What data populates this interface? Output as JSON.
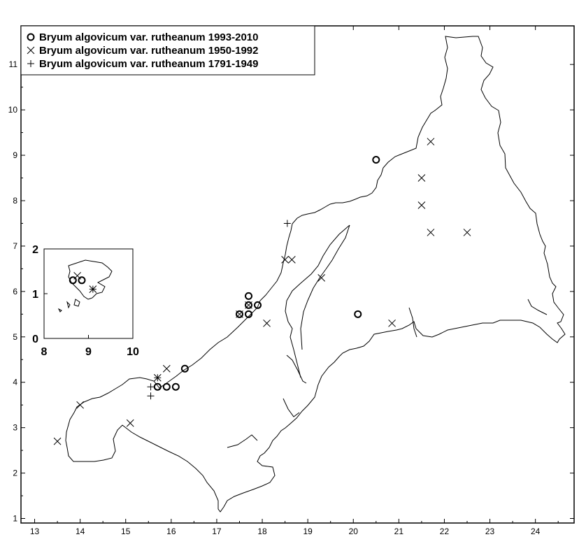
{
  "chart_data": {
    "type": "scatter",
    "title": "",
    "xlabel": "",
    "ylabel": "",
    "xlim": [
      12.7,
      24.85
    ],
    "ylim": [
      0.9,
      11.85
    ],
    "x_ticks": [
      "13",
      "14",
      "15",
      "16",
      "17",
      "18",
      "19",
      "20",
      "21",
      "22",
      "23",
      "24"
    ],
    "y_ticks": [
      "1",
      "2",
      "3",
      "4",
      "5",
      "6",
      "7",
      "8",
      "9",
      "10",
      "11"
    ],
    "grid": false,
    "legend_position": "top-left",
    "legend": [
      {
        "symbol": "circle",
        "label": "Bryum algovicum var. rutheanum 1993-2010"
      },
      {
        "symbol": "x",
        "label": "Bryum algovicum var. rutheanum 1950-1992"
      },
      {
        "symbol": "plus",
        "label": "Bryum algovicum var. rutheanum 1791-1949"
      }
    ],
    "series": [
      {
        "name": "Bryum algovicum var. rutheanum 1993-2010",
        "symbol": "circle",
        "points": [
          [
            20.5,
            8.9
          ],
          [
            20.1,
            5.5
          ],
          [
            17.5,
            5.5
          ],
          [
            17.7,
            5.5
          ],
          [
            17.7,
            5.7
          ],
          [
            17.9,
            5.7
          ],
          [
            17.7,
            5.9
          ],
          [
            16.3,
            4.3
          ],
          [
            15.7,
            3.9
          ],
          [
            15.9,
            3.9
          ],
          [
            16.1,
            3.9
          ]
        ]
      },
      {
        "name": "Bryum algovicum var. rutheanum 1950-1992",
        "symbol": "x",
        "points": [
          [
            21.7,
            9.3
          ],
          [
            21.5,
            8.5
          ],
          [
            21.5,
            7.9
          ],
          [
            21.7,
            7.3
          ],
          [
            22.5,
            7.3
          ],
          [
            18.5,
            6.7
          ],
          [
            18.65,
            6.7
          ],
          [
            19.3,
            6.3
          ],
          [
            18.1,
            5.3
          ],
          [
            20.85,
            5.3
          ],
          [
            17.5,
            5.5
          ],
          [
            17.7,
            5.7
          ],
          [
            15.9,
            4.3
          ],
          [
            15.7,
            4.1
          ],
          [
            14.0,
            3.5
          ],
          [
            15.1,
            3.1
          ],
          [
            13.5,
            2.7
          ]
        ]
      },
      {
        "name": "Bryum algovicum var. rutheanum 1791-1949",
        "symbol": "plus",
        "points": [
          [
            18.55,
            7.5
          ],
          [
            15.55,
            3.9
          ],
          [
            15.55,
            3.7
          ],
          [
            15.7,
            4.1
          ]
        ]
      }
    ],
    "inset": {
      "x_ticks": [
        "8",
        "9",
        "10"
      ],
      "y_ticks": [
        "0",
        "1",
        "2"
      ],
      "xlim": [
        8,
        10
      ],
      "ylim": [
        0,
        2
      ],
      "circles": [
        [
          8.65,
          1.3
        ],
        [
          8.85,
          1.3
        ]
      ],
      "x_marks": [
        [
          8.75,
          1.4
        ],
        [
          9.1,
          1.1
        ]
      ],
      "plus_marks": [
        [
          9.1,
          1.1
        ]
      ]
    }
  }
}
